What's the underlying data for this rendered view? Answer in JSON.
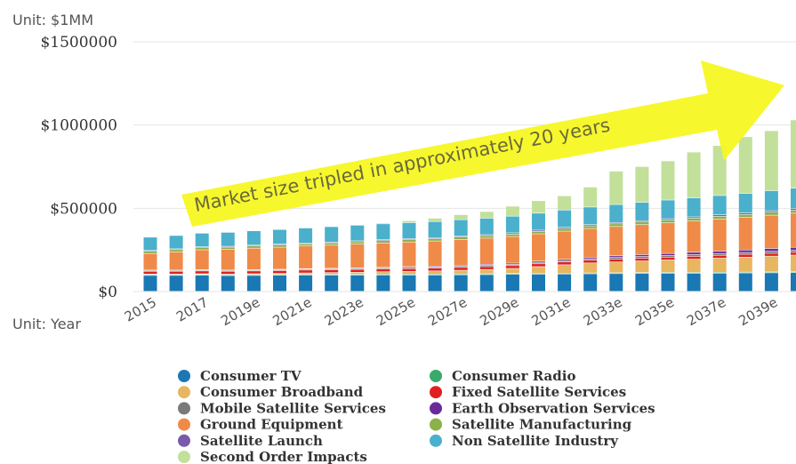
{
  "chart_data": {
    "type": "bar",
    "stacked": true,
    "y_unit_label": "Unit: $1MM",
    "x_unit_label": "Unit: Year",
    "ylim": [
      0,
      1500000
    ],
    "y_ticks": [
      "$0",
      "$500000",
      "$1000000",
      "$1500000"
    ],
    "y_tick_values": [
      0,
      500000,
      1000000,
      1500000
    ],
    "grid": true,
    "annotation": "Market size tripled in approximately 20 years",
    "x_tick_labels": [
      "2015",
      "2017",
      "2019e",
      "2021e",
      "2023e",
      "2025e",
      "2027e",
      "2029e",
      "2031e",
      "2033e",
      "2035e",
      "2037e",
      "2039e"
    ],
    "categories": [
      "2015",
      "2016",
      "2017",
      "2018",
      "2019e",
      "2020e",
      "2021e",
      "2022e",
      "2023e",
      "2024e",
      "2025e",
      "2026e",
      "2027e",
      "2028e",
      "2029e",
      "2030e",
      "2031e",
      "2032e",
      "2033e",
      "2034e",
      "2035e",
      "2036e",
      "2037e",
      "2038e",
      "2039e",
      "2040e"
    ],
    "legend_position": "bottom",
    "series": [
      {
        "name": "Consumer TV",
        "color": "#1a78b4",
        "values": [
          95000,
          95000,
          96000,
          94000,
          95000,
          96000,
          97000,
          97000,
          97000,
          98000,
          98000,
          98000,
          99000,
          100000,
          102000,
          103000,
          104000,
          105000,
          106000,
          107000,
          108000,
          108000,
          109000,
          110000,
          111000,
          112000
        ]
      },
      {
        "name": "Consumer Radio",
        "color": "#3aaa6a",
        "values": [
          5000,
          5000,
          5000,
          5000,
          5000,
          5000,
          5000,
          5000,
          5000,
          5000,
          5000,
          5000,
          5000,
          5000,
          5000,
          5000,
          5000,
          5000,
          5000,
          5000,
          5000,
          5000,
          5000,
          5000,
          5000,
          5000
        ]
      },
      {
        "name": "Consumer Broadband",
        "color": "#e8b660",
        "values": [
          3000,
          3000,
          4000,
          4000,
          5000,
          6000,
          8000,
          10000,
          12000,
          14000,
          16000,
          19000,
          22000,
          26000,
          30000,
          40000,
          50000,
          60000,
          65000,
          70000,
          75000,
          80000,
          85000,
          90000,
          95000,
          100000
        ]
      },
      {
        "name": "Fixed Satellite Services",
        "color": "#e02020",
        "values": [
          17000,
          17000,
          17000,
          17000,
          17000,
          17000,
          17000,
          17000,
          17000,
          17000,
          17000,
          17000,
          17000,
          17000,
          17000,
          17000,
          17000,
          17000,
          17000,
          17000,
          17000,
          17000,
          17000,
          17000,
          17000,
          17000
        ]
      },
      {
        "name": "Mobile Satellite Services",
        "color": "#7a7a7a",
        "values": [
          5000,
          5000,
          5000,
          5000,
          5000,
          5000,
          6000,
          6000,
          6000,
          7000,
          7000,
          7000,
          8000,
          8000,
          8000,
          9000,
          9000,
          9000,
          10000,
          10000,
          10000,
          11000,
          11000,
          11000,
          12000,
          12000
        ]
      },
      {
        "name": "Earth Observation Services",
        "color": "#6a2a9a",
        "values": [
          2000,
          2000,
          2000,
          2000,
          2000,
          3000,
          3000,
          3000,
          4000,
          4000,
          5000,
          5000,
          6000,
          6000,
          7000,
          7000,
          8000,
          9000,
          10000,
          11000,
          12000,
          13000,
          14000,
          15000,
          17000,
          18000
        ]
      },
      {
        "name": "Ground Equipment",
        "color": "#f08a48",
        "values": [
          100000,
          110000,
          120000,
          125000,
          130000,
          133000,
          136000,
          139000,
          142000,
          145000,
          148000,
          151000,
          154000,
          157000,
          160000,
          164000,
          168000,
          172000,
          176000,
          180000,
          184000,
          188000,
          192000,
          196000,
          200000,
          205000
        ]
      },
      {
        "name": "Satellite Manufacturing",
        "color": "#8cb04a",
        "values": [
          13000,
          13000,
          13000,
          13000,
          13000,
          13000,
          13000,
          14000,
          14000,
          14000,
          14000,
          14000,
          15000,
          15000,
          15000,
          15000,
          16000,
          16000,
          16000,
          16000,
          17000,
          17000,
          17000,
          17000,
          18000,
          18000
        ]
      },
      {
        "name": "Satellite Launch",
        "color": "#7a5aaa",
        "values": [
          5000,
          5000,
          5000,
          5000,
          5000,
          5000,
          5000,
          5000,
          6000,
          6000,
          6000,
          6000,
          6000,
          6000,
          7000,
          7000,
          7000,
          7000,
          8000,
          8000,
          8000,
          8000,
          9000,
          9000,
          9000,
          10000
        ]
      },
      {
        "name": "Non Satellite Industry",
        "color": "#4ab0cc",
        "values": [
          80000,
          80000,
          82000,
          84000,
          86000,
          88000,
          90000,
          92000,
          94000,
          95000,
          96000,
          97000,
          98000,
          99000,
          100000,
          102000,
          104000,
          106000,
          108000,
          110000,
          112000,
          114000,
          116000,
          118000,
          120000,
          122000
        ]
      },
      {
        "name": "Second Order Impacts",
        "color": "#c2e09a",
        "values": [
          0,
          0,
          0,
          0,
          0,
          0,
          0,
          0,
          2000,
          6000,
          12000,
          20000,
          30000,
          40000,
          60000,
          75000,
          85000,
          120000,
          200000,
          215000,
          235000,
          275000,
          300000,
          340000,
          360000,
          410000
        ]
      }
    ]
  }
}
